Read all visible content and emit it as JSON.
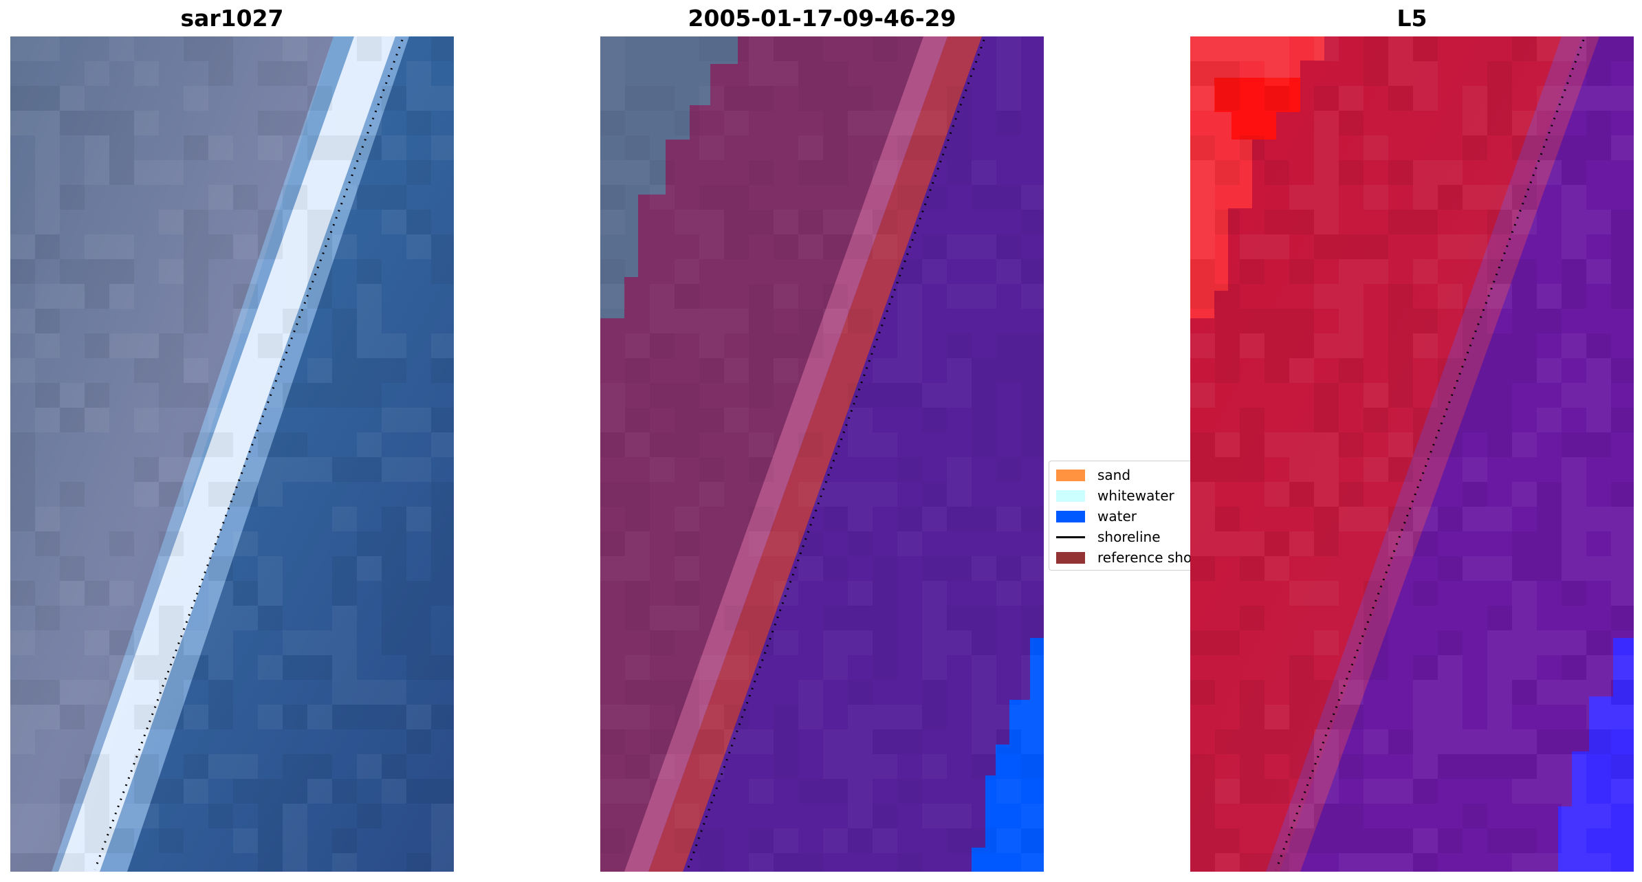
{
  "panels": [
    {
      "title": "sar1027"
    },
    {
      "title": "2005-01-17-09-46-29"
    },
    {
      "title": "L5"
    }
  ],
  "legend": {
    "items": [
      {
        "label": "sand",
        "color": "#ff9340",
        "kind": "patch"
      },
      {
        "label": "whitewater",
        "color": "#ccffff",
        "kind": "patch"
      },
      {
        "label": "water",
        "color": "#0059ff",
        "kind": "patch"
      },
      {
        "label": "shoreline",
        "color": "#000000",
        "kind": "line"
      },
      {
        "label": "reference shoreline",
        "color": "#933333",
        "kind": "patch"
      }
    ]
  },
  "colors": {
    "rgb_land": "#6f7fa0",
    "rgb_sea": "#2f5f98",
    "rgb_beach": "#e8f2ff",
    "class_land": "#7e2f66",
    "class_water_overlay": "#55209a",
    "class_reference_band": "#b0384e",
    "class_water_patch": "#0059ff",
    "swir_land": "#c4163e",
    "swir_sea": "#6a1aa2",
    "swir_bright": "#ff1a1a",
    "swir_blue": "#3b2aff"
  }
}
